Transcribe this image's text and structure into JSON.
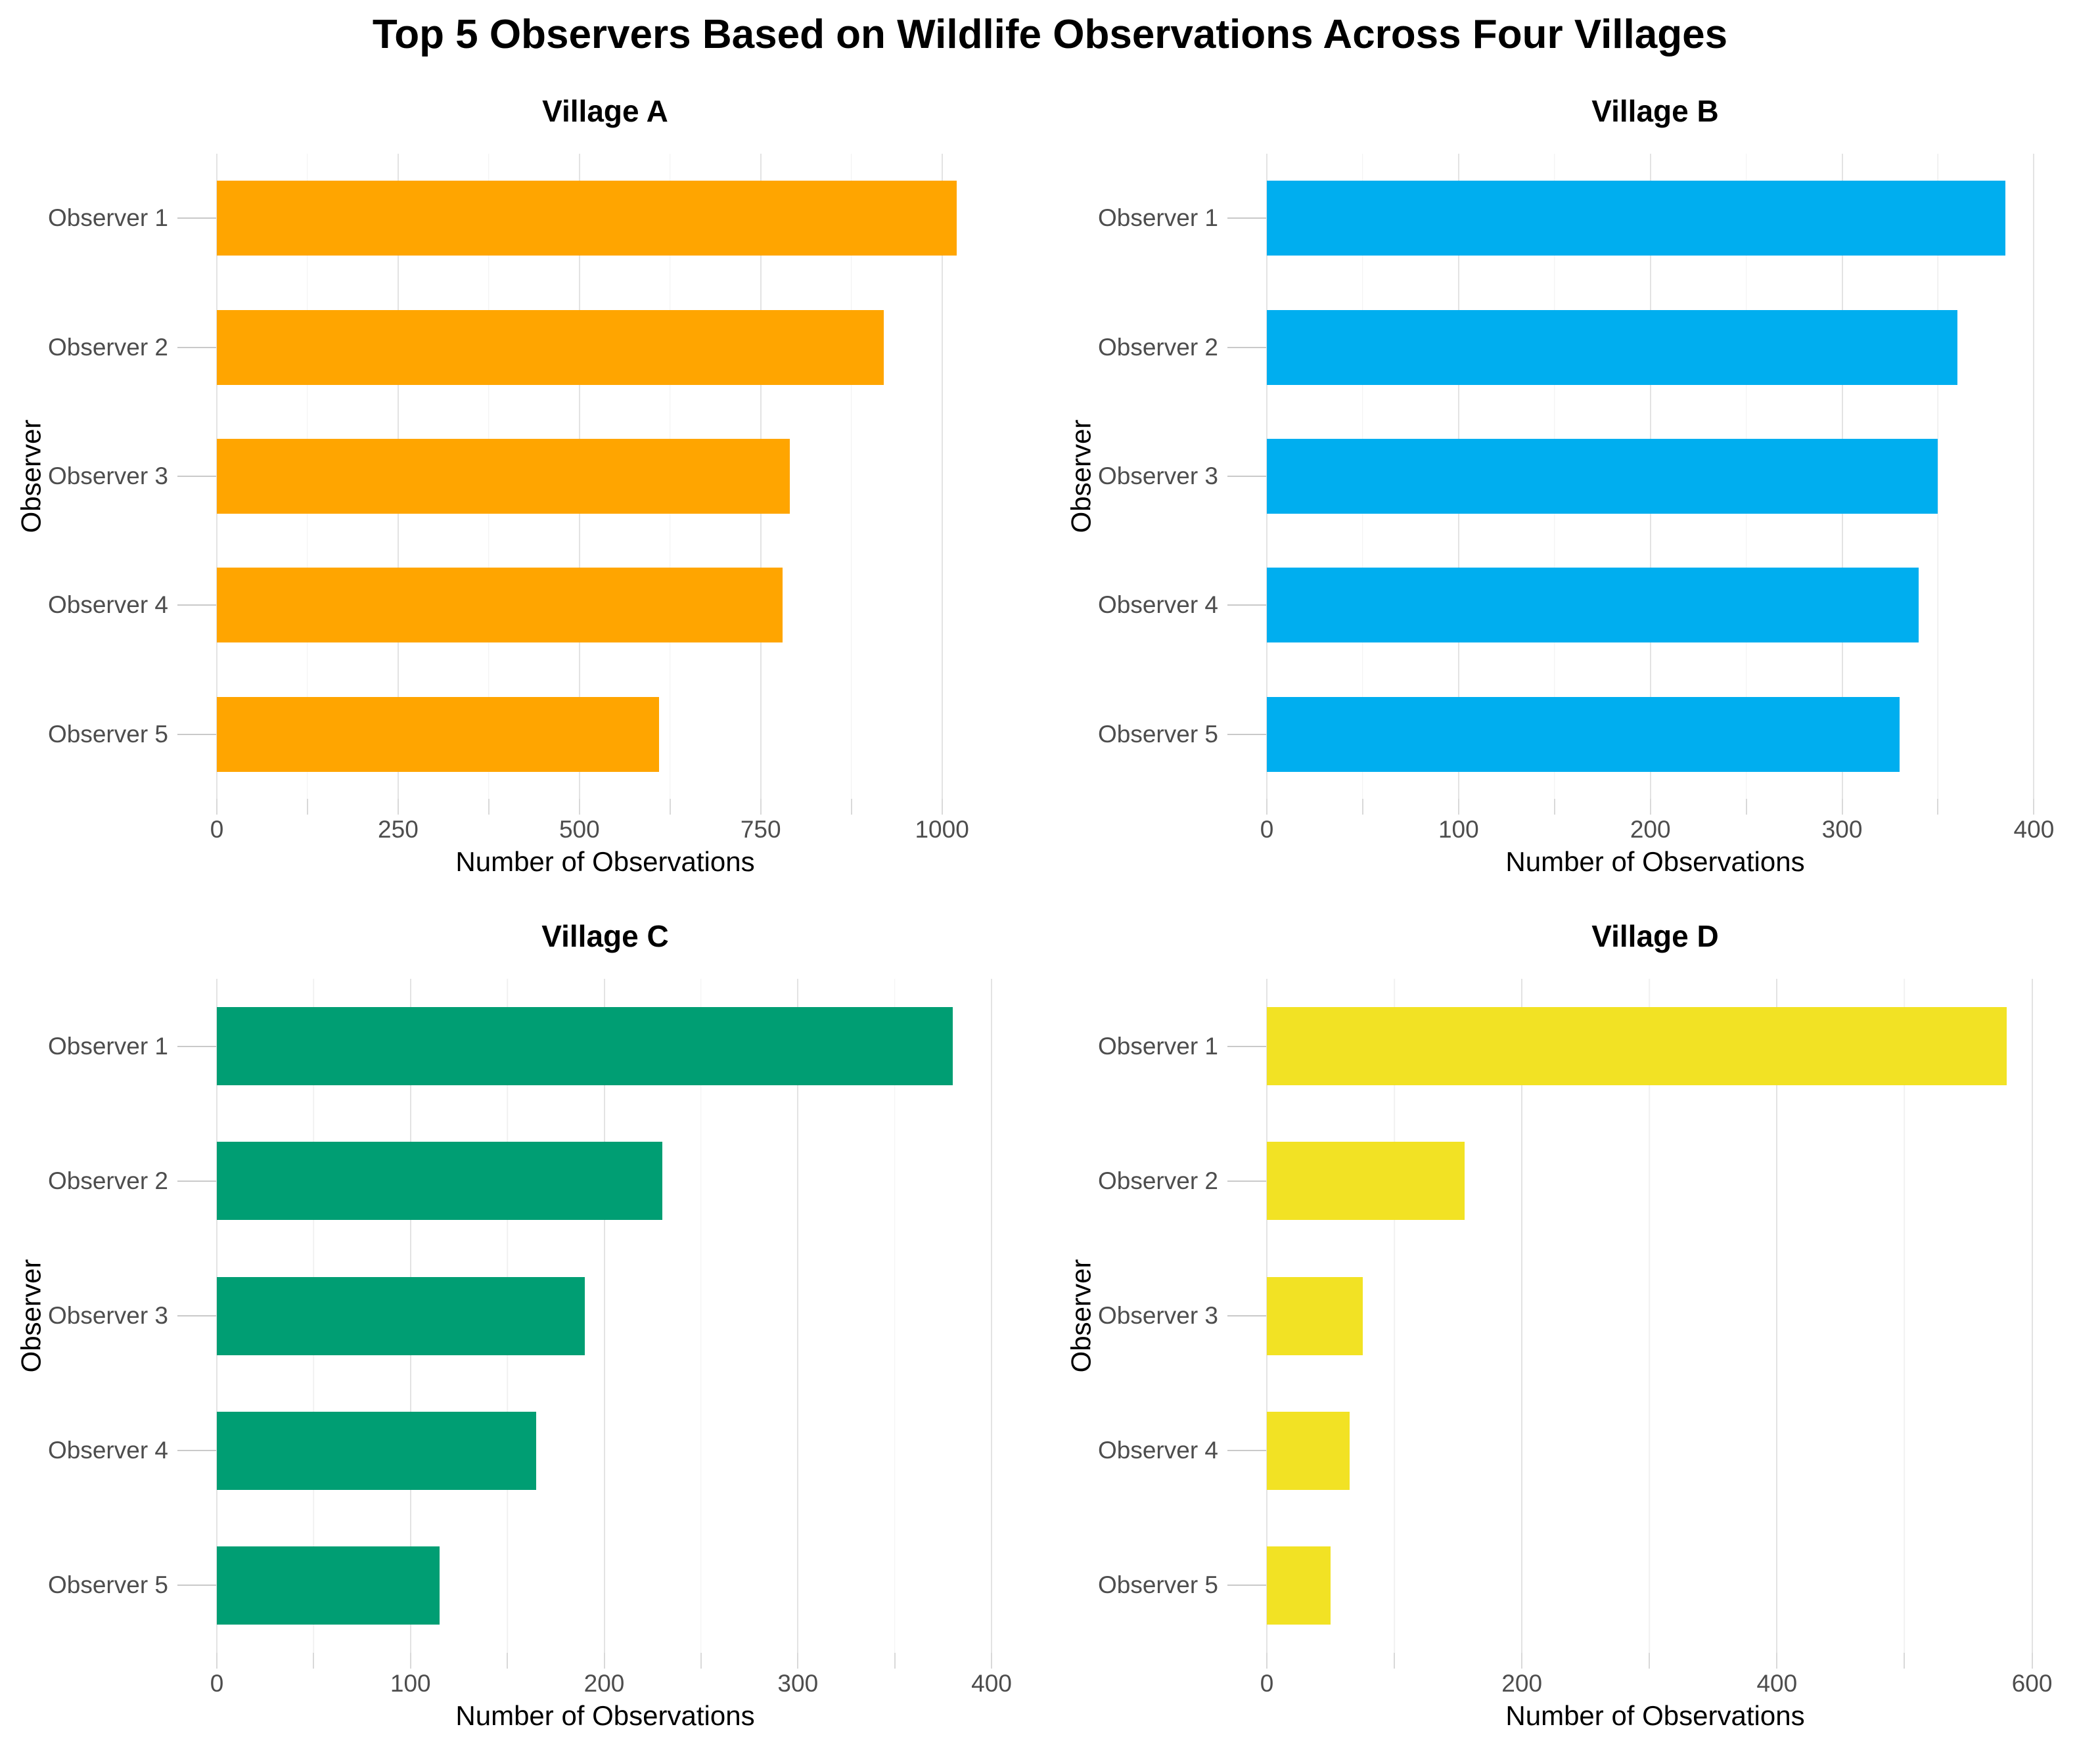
{
  "page_title": "Top 5 Observers Based on Wildlife Observations Across Four Villages",
  "colors": {
    "background": "#ffffff",
    "grid_major": "#e3e3e3",
    "grid_minor": "#f1f1f1",
    "tick_mark": "#d9d9d9",
    "y_tick_line": "#c9c9c9",
    "tick_label": "#4d4d4d",
    "village_a_bar": "#FFA500",
    "village_b_bar": "#00AEEF",
    "village_c_bar": "#009E73",
    "village_d_bar": "#F2E224"
  },
  "chart_data": [
    {
      "type": "bar",
      "orientation": "horizontal",
      "title": "Village A",
      "categories": [
        "Observer 1",
        "Observer 2",
        "Observer 3",
        "Observer 4",
        "Observer 5"
      ],
      "values": [
        1020,
        920,
        790,
        780,
        610
      ],
      "xlabel": "Number of Observations",
      "ylabel": "Observer",
      "xticks": [
        0,
        250,
        500,
        750,
        1000
      ],
      "minor_ticks": [
        125,
        375,
        625,
        875
      ],
      "xlim": [
        0,
        1071
      ],
      "bar_color": "#FFA500",
      "grid": true,
      "legend": false
    },
    {
      "type": "bar",
      "orientation": "horizontal",
      "title": "Village B",
      "categories": [
        "Observer 1",
        "Observer 2",
        "Observer 3",
        "Observer 4",
        "Observer 5"
      ],
      "values": [
        385,
        360,
        350,
        340,
        330
      ],
      "xlabel": "Number of Observations",
      "ylabel": "Observer",
      "xticks": [
        0,
        100,
        200,
        300,
        400
      ],
      "minor_ticks": [
        50,
        150,
        250,
        350
      ],
      "xlim": [
        0,
        405
      ],
      "bar_color": "#00AEEF",
      "grid": true,
      "legend": false
    },
    {
      "type": "bar",
      "orientation": "horizontal",
      "title": "Village C",
      "categories": [
        "Observer 1",
        "Observer 2",
        "Observer 3",
        "Observer 4",
        "Observer 5"
      ],
      "values": [
        380,
        230,
        190,
        165,
        115
      ],
      "xlabel": "Number of Observations",
      "ylabel": "Observer",
      "xticks": [
        0,
        100,
        200,
        300,
        400
      ],
      "minor_ticks": [
        50,
        150,
        250,
        350
      ],
      "xlim": [
        0,
        401
      ],
      "bar_color": "#009E73",
      "grid": true,
      "legend": false
    },
    {
      "type": "bar",
      "orientation": "horizontal",
      "title": "Village D",
      "categories": [
        "Observer 1",
        "Observer 2",
        "Observer 3",
        "Observer 4",
        "Observer 5"
      ],
      "values": [
        580,
        155,
        75,
        65,
        50
      ],
      "xlabel": "Number of Observations",
      "ylabel": "Observer",
      "xticks": [
        0,
        200,
        400,
        600
      ],
      "minor_ticks": [
        100,
        300,
        500
      ],
      "xlim": [
        0,
        609
      ],
      "bar_color": "#F2E224",
      "grid": true,
      "legend": false
    }
  ]
}
